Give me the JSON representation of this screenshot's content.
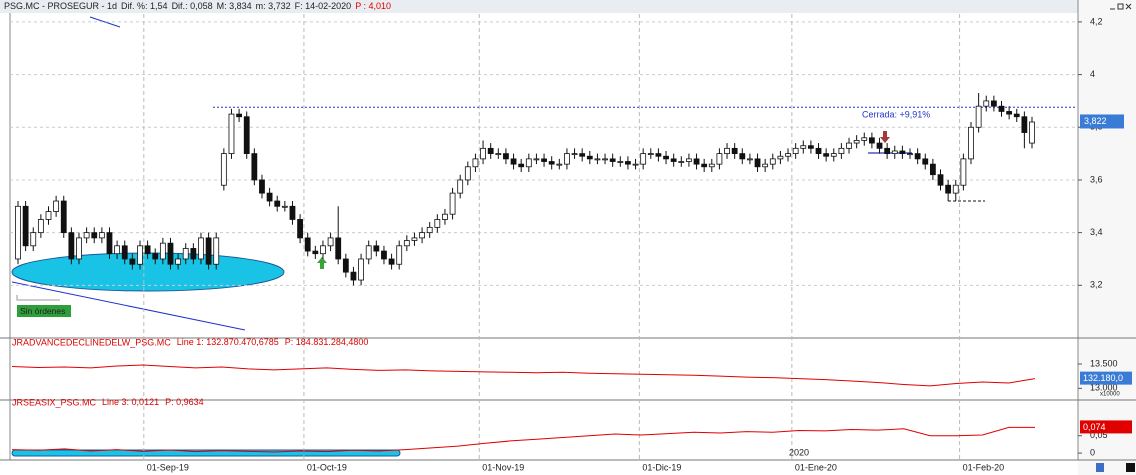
{
  "chart_data": [
    {
      "type": "candlestick",
      "title": "PSG.MC - PROSEGUR - 1d",
      "stats": [
        "Dif. %: 1,54",
        "Dif.: 0,058",
        "M: 3,834",
        "m: 3,732",
        "F: 14-02-2020"
      ],
      "stat_highlight": "P : 4,010",
      "annotation": "Cerrada: +9,91%",
      "badge": "Sin órdenes",
      "reference_level": 3.876,
      "support_level": 3.52,
      "last_price": {
        "value": 3.822,
        "label": "3,822"
      },
      "ylim": [
        3.0,
        4.23
      ],
      "yticks": [
        {
          "value": 3.2,
          "label": "3,2"
        },
        {
          "value": 3.4,
          "label": "3,4"
        },
        {
          "value": 3.6,
          "label": "3,6"
        },
        {
          "value": 3.8,
          "label": "3,8"
        },
        4,
        {
          "value": 4.2,
          "label": "4,2"
        }
      ],
      "grid": true,
      "categories": [
        null,
        null,
        null,
        null,
        null,
        null,
        null,
        null,
        null,
        null,
        null,
        null,
        null,
        null,
        null,
        null,
        null,
        "01-Sep-19",
        null,
        null,
        null,
        null,
        null,
        null,
        null,
        null,
        null,
        null,
        null,
        null,
        null,
        null,
        null,
        null,
        null,
        null,
        null,
        null,
        "01-Oct-19",
        null,
        null,
        null,
        null,
        null,
        null,
        null,
        null,
        null,
        null,
        null,
        null,
        null,
        null,
        null,
        null,
        null,
        null,
        null,
        null,
        null,
        null,
        "01-Nov-19",
        null,
        null,
        null,
        null,
        null,
        null,
        null,
        null,
        null,
        null,
        null,
        null,
        null,
        null,
        null,
        null,
        null,
        null,
        null,
        null,
        "01-Dic-19",
        null,
        null,
        null,
        null,
        null,
        null,
        null,
        null,
        null,
        null,
        null,
        null,
        null,
        null,
        null,
        null,
        null,
        null,
        null,
        "01-Ene-20",
        null,
        null,
        null,
        null,
        null,
        null,
        null,
        null,
        null,
        null,
        null,
        null,
        null,
        null,
        null,
        null,
        null,
        null,
        null,
        null,
        null,
        "01-Feb-20",
        null,
        null,
        null,
        null,
        null,
        null,
        null,
        null,
        null
      ],
      "ohlc": [
        [
          3.3,
          3.52,
          3.28,
          3.5
        ],
        [
          3.5,
          3.52,
          3.33,
          3.35
        ],
        [
          3.35,
          3.42,
          3.33,
          3.4
        ],
        [
          3.4,
          3.47,
          3.38,
          3.45
        ],
        [
          3.45,
          3.5,
          3.43,
          3.48
        ],
        [
          3.48,
          3.54,
          3.46,
          3.52
        ],
        [
          3.52,
          3.54,
          3.38,
          3.4
        ],
        [
          3.4,
          3.42,
          3.28,
          3.3
        ],
        [
          3.3,
          3.4,
          3.28,
          3.38
        ],
        [
          3.38,
          3.42,
          3.36,
          3.4
        ],
        [
          3.4,
          3.42,
          3.36,
          3.38
        ],
        [
          3.38,
          3.42,
          3.36,
          3.4
        ],
        [
          3.4,
          3.42,
          3.3,
          3.32
        ],
        [
          3.32,
          3.37,
          3.3,
          3.35
        ],
        [
          3.35,
          3.37,
          3.28,
          3.3
        ],
        [
          3.3,
          3.32,
          3.26,
          3.28
        ],
        [
          3.28,
          3.37,
          3.26,
          3.35
        ],
        [
          3.35,
          3.37,
          3.3,
          3.32
        ],
        [
          3.32,
          3.34,
          3.28,
          3.3
        ],
        [
          3.3,
          3.38,
          3.28,
          3.36
        ],
        [
          3.36,
          3.38,
          3.26,
          3.28
        ],
        [
          3.28,
          3.32,
          3.26,
          3.3
        ],
        [
          3.3,
          3.36,
          3.28,
          3.34
        ],
        [
          3.34,
          3.36,
          3.28,
          3.3
        ],
        [
          3.3,
          3.4,
          3.28,
          3.38
        ],
        [
          3.38,
          3.4,
          3.26,
          3.28
        ],
        [
          3.28,
          3.4,
          3.26,
          3.38
        ],
        [
          3.58,
          3.72,
          3.56,
          3.7
        ],
        [
          3.7,
          3.87,
          3.68,
          3.85
        ],
        [
          3.85,
          3.87,
          3.82,
          3.84
        ],
        [
          3.84,
          3.86,
          3.68,
          3.7
        ],
        [
          3.7,
          3.72,
          3.58,
          3.6
        ],
        [
          3.6,
          3.62,
          3.53,
          3.55
        ],
        [
          3.55,
          3.57,
          3.5,
          3.52
        ],
        [
          3.52,
          3.54,
          3.48,
          3.5
        ],
        [
          3.5,
          3.52,
          3.48,
          3.5
        ],
        [
          3.5,
          3.52,
          3.43,
          3.45
        ],
        [
          3.45,
          3.47,
          3.36,
          3.38
        ],
        [
          3.38,
          3.4,
          3.31,
          3.33
        ],
        [
          3.33,
          3.35,
          3.3,
          3.32
        ],
        [
          3.32,
          3.37,
          3.3,
          3.35
        ],
        [
          3.35,
          3.4,
          3.33,
          3.38
        ],
        [
          3.38,
          3.5,
          3.28,
          3.3
        ],
        [
          3.3,
          3.32,
          3.23,
          3.25
        ],
        [
          3.25,
          3.27,
          3.2,
          3.22
        ],
        [
          3.22,
          3.32,
          3.2,
          3.3
        ],
        [
          3.3,
          3.37,
          3.28,
          3.35
        ],
        [
          3.35,
          3.37,
          3.31,
          3.33
        ],
        [
          3.33,
          3.35,
          3.28,
          3.3
        ],
        [
          3.3,
          3.32,
          3.26,
          3.28
        ],
        [
          3.28,
          3.37,
          3.26,
          3.35
        ],
        [
          3.35,
          3.39,
          3.33,
          3.37
        ],
        [
          3.37,
          3.4,
          3.35,
          3.38
        ],
        [
          3.38,
          3.42,
          3.36,
          3.4
        ],
        [
          3.4,
          3.44,
          3.38,
          3.42
        ],
        [
          3.42,
          3.47,
          3.4,
          3.45
        ],
        [
          3.45,
          3.49,
          3.43,
          3.47
        ],
        [
          3.47,
          3.57,
          3.45,
          3.55
        ],
        [
          3.55,
          3.62,
          3.53,
          3.6
        ],
        [
          3.6,
          3.67,
          3.58,
          3.65
        ],
        [
          3.65,
          3.7,
          3.63,
          3.68
        ],
        [
          3.68,
          3.75,
          3.66,
          3.72
        ],
        [
          3.72,
          3.74,
          3.68,
          3.7
        ],
        [
          3.7,
          3.72,
          3.68,
          3.7
        ],
        [
          3.7,
          3.72,
          3.66,
          3.68
        ],
        [
          3.68,
          3.7,
          3.64,
          3.66
        ],
        [
          3.66,
          3.68,
          3.63,
          3.65
        ],
        [
          3.65,
          3.7,
          3.63,
          3.68
        ],
        [
          3.68,
          3.7,
          3.66,
          3.68
        ],
        [
          3.68,
          3.7,
          3.65,
          3.67
        ],
        [
          3.67,
          3.69,
          3.64,
          3.66
        ],
        [
          3.66,
          3.68,
          3.64,
          3.66
        ],
        [
          3.66,
          3.72,
          3.64,
          3.7
        ],
        [
          3.7,
          3.72,
          3.68,
          3.7
        ],
        [
          3.7,
          3.72,
          3.67,
          3.69
        ],
        [
          3.69,
          3.71,
          3.66,
          3.68
        ],
        [
          3.68,
          3.7,
          3.66,
          3.68
        ],
        [
          3.68,
          3.7,
          3.66,
          3.68
        ],
        [
          3.68,
          3.7,
          3.65,
          3.67
        ],
        [
          3.67,
          3.69,
          3.65,
          3.67
        ],
        [
          3.67,
          3.69,
          3.64,
          3.66
        ],
        [
          3.66,
          3.68,
          3.64,
          3.66
        ],
        [
          3.66,
          3.72,
          3.64,
          3.7
        ],
        [
          3.7,
          3.72,
          3.68,
          3.7
        ],
        [
          3.7,
          3.72,
          3.67,
          3.69
        ],
        [
          3.69,
          3.71,
          3.66,
          3.68
        ],
        [
          3.68,
          3.7,
          3.65,
          3.67
        ],
        [
          3.67,
          3.69,
          3.65,
          3.67
        ],
        [
          3.67,
          3.7,
          3.65,
          3.68
        ],
        [
          3.68,
          3.7,
          3.64,
          3.66
        ],
        [
          3.66,
          3.68,
          3.63,
          3.65
        ],
        [
          3.65,
          3.68,
          3.63,
          3.66
        ],
        [
          3.66,
          3.72,
          3.64,
          3.7
        ],
        [
          3.7,
          3.74,
          3.68,
          3.72
        ],
        [
          3.72,
          3.74,
          3.68,
          3.7
        ],
        [
          3.7,
          3.72,
          3.66,
          3.68
        ],
        [
          3.68,
          3.7,
          3.66,
          3.68
        ],
        [
          3.68,
          3.7,
          3.63,
          3.65
        ],
        [
          3.65,
          3.68,
          3.63,
          3.66
        ],
        [
          3.66,
          3.7,
          3.64,
          3.68
        ],
        [
          3.68,
          3.71,
          3.66,
          3.69
        ],
        [
          3.69,
          3.72,
          3.67,
          3.7
        ],
        [
          3.7,
          3.74,
          3.68,
          3.72
        ],
        [
          3.72,
          3.75,
          3.7,
          3.73
        ],
        [
          3.73,
          3.75,
          3.7,
          3.72
        ],
        [
          3.72,
          3.74,
          3.68,
          3.7
        ],
        [
          3.7,
          3.72,
          3.67,
          3.69
        ],
        [
          3.69,
          3.72,
          3.67,
          3.7
        ],
        [
          3.7,
          3.74,
          3.68,
          3.72
        ],
        [
          3.72,
          3.76,
          3.7,
          3.74
        ],
        [
          3.74,
          3.77,
          3.72,
          3.75
        ],
        [
          3.75,
          3.78,
          3.73,
          3.76
        ],
        [
          3.76,
          3.78,
          3.72,
          3.74
        ],
        [
          3.74,
          3.76,
          3.7,
          3.72
        ],
        [
          3.72,
          3.74,
          3.68,
          3.7
        ],
        [
          3.7,
          3.73,
          3.68,
          3.71
        ],
        [
          3.71,
          3.73,
          3.68,
          3.7
        ],
        [
          3.7,
          3.72,
          3.68,
          3.7
        ],
        [
          3.7,
          3.72,
          3.66,
          3.68
        ],
        [
          3.68,
          3.7,
          3.64,
          3.66
        ],
        [
          3.66,
          3.68,
          3.6,
          3.62
        ],
        [
          3.62,
          3.64,
          3.56,
          3.58
        ],
        [
          3.58,
          3.6,
          3.52,
          3.55
        ],
        [
          3.55,
          3.6,
          3.52,
          3.58
        ],
        [
          3.58,
          3.7,
          3.56,
          3.68
        ],
        [
          3.68,
          3.82,
          3.66,
          3.8
        ],
        [
          3.8,
          3.93,
          3.78,
          3.88
        ],
        [
          3.88,
          3.92,
          3.86,
          3.9
        ],
        [
          3.9,
          3.92,
          3.86,
          3.88
        ],
        [
          3.88,
          3.9,
          3.84,
          3.86
        ],
        [
          3.86,
          3.88,
          3.83,
          3.85
        ],
        [
          3.85,
          3.87,
          3.82,
          3.84
        ],
        [
          3.84,
          3.86,
          3.72,
          3.78
        ],
        [
          3.74,
          3.84,
          3.72,
          3.82
        ]
      ]
    },
    {
      "type": "line",
      "title": "JRADVANCEDECLINEDELW_PSG.MC",
      "stats": [
        "Line 1: 132.870.470,6785",
        "P: 184.831.284,4800"
      ],
      "color": "#e00000",
      "last_label": "132.180,0",
      "multiplier": "x10000",
      "ylim": [
        12760,
        13830
      ],
      "yticks": [
        {
          "value": 13000,
          "label": "13.000"
        },
        {
          "value": 13500,
          "label": "13.500"
        }
      ],
      "values": [
        13450,
        13430,
        13440,
        13420,
        13460,
        13480,
        13450,
        13420,
        13440,
        13400,
        13380,
        13400,
        13420,
        13390,
        13370,
        13380,
        13360,
        13350,
        13340,
        13330,
        13320,
        13330,
        13310,
        13300,
        13290,
        13280,
        13270,
        13250,
        13230,
        13220,
        13200,
        13180,
        13150,
        13120,
        13080,
        13050,
        13100,
        13130,
        13110,
        13200
      ]
    },
    {
      "type": "line",
      "title": "JRSEASIX_PSG.MC",
      "stats": [
        "Line 3: 0,0121",
        "P: 0,9634"
      ],
      "color": "#e00000",
      "last_label": "0,074",
      "year_label": "2020",
      "ylim": [
        -0.02,
        0.13
      ],
      "yticks": [
        0,
        {
          "value": 0.05,
          "label": "0,05"
        }
      ],
      "values": [
        0.01,
        0.008,
        0.012,
        0.006,
        0.01,
        0.005,
        0.009,
        0.004,
        0.007,
        0.005,
        0.003,
        0.006,
        0.004,
        0.008,
        0.006,
        0.01,
        0.015,
        0.02,
        0.028,
        0.035,
        0.04,
        0.045,
        0.05,
        0.055,
        0.052,
        0.056,
        0.06,
        0.058,
        0.062,
        0.06,
        0.065,
        0.064,
        0.068,
        0.066,
        0.07,
        0.05,
        0.05,
        0.052,
        0.074,
        0.074
      ]
    }
  ]
}
